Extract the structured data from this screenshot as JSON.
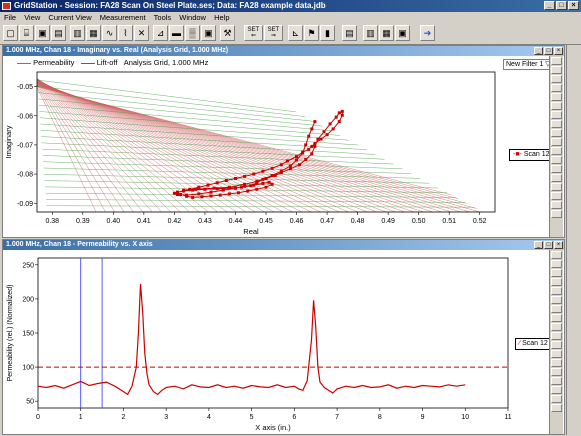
{
  "window": {
    "title": "GridStation - Session: FA28 Scan On Steel Plate.ses; Data: FA28 example data.jdb"
  },
  "menu": [
    "File",
    "View",
    "Current View",
    "Measurement",
    "Tools",
    "Window",
    "Help"
  ],
  "toolbar": {
    "set_label": "SET"
  },
  "colors": {
    "trace": "#cc0000",
    "grid_red": "#d06060",
    "grid_green": "#4a9a4a",
    "cursor_blue": "#3030ff",
    "titlebar": "#0a246a"
  },
  "pane_top": {
    "title": "1.000 MHz, Chan 18 - Imaginary vs. Real (Analysis Grid, 1.000 MHz)",
    "legend": {
      "permeability": "Permeability",
      "liftoff": "Lift-off",
      "grid": "Analysis Grid, 1.000 MHz"
    },
    "filter_value": "New Filter 1",
    "scan_legend": "Scan 12"
  },
  "pane_bottom": {
    "title": "1.000 MHz, Chan 18 - Permeability vs. X axis",
    "scan_legend": "Scan 12"
  },
  "chart_data": [
    {
      "type": "scatter",
      "xlabel": "Real",
      "ylabel": "Imaginary",
      "xlim": [
        0.375,
        0.525
      ],
      "ylim": [
        -0.093,
        -0.045
      ],
      "xticks": [
        "0.38",
        "0.39",
        "0.40",
        "0.41",
        "0.42",
        "0.43",
        "0.44",
        "0.45",
        "0.46",
        "0.47",
        "0.48",
        "0.49",
        "0.50",
        "0.51",
        "0.52"
      ],
      "xtick_values": [
        0.38,
        0.39,
        0.4,
        0.41,
        0.42,
        0.43,
        0.44,
        0.45,
        0.46,
        0.47,
        0.48,
        0.49,
        0.5,
        0.51,
        0.52
      ],
      "yticks": [
        "-0.05",
        "-0.06",
        "-0.07",
        "-0.08",
        "-0.09"
      ],
      "ytick_values": [
        -0.05,
        -0.06,
        -0.07,
        -0.08,
        -0.09
      ],
      "series": [
        {
          "name": "Scan 12",
          "x": [
            0.423,
            0.427,
            0.433,
            0.438,
            0.443,
            0.447,
            0.45,
            0.453,
            0.455,
            0.458,
            0.461,
            0.463,
            0.465,
            0.466,
            0.467,
            0.469,
            0.471,
            0.473,
            0.474,
            0.475,
            0.475,
            0.474,
            0.472,
            0.47,
            0.468,
            0.466,
            0.465,
            0.464,
            0.462,
            0.46,
            0.457,
            0.455,
            0.452,
            0.449,
            0.446,
            0.443,
            0.44,
            0.437,
            0.434,
            0.431,
            0.428,
            0.425,
            0.423,
            0.421,
            0.42,
            0.421,
            0.424,
            0.428,
            0.432,
            0.436,
            0.44,
            0.443,
            0.446,
            0.449,
            0.451,
            0.452,
            0.45,
            0.447,
            0.444,
            0.441,
            0.438,
            0.435,
            0.432,
            0.429,
            0.426,
            0.424,
            0.422,
            0.421,
            0.423,
            0.426,
            0.43,
            0.434,
            0.438,
            0.442,
            0.445,
            0.447,
            0.449,
            0.452,
            0.455,
            0.458,
            0.46,
            0.462,
            0.463,
            0.464,
            0.465,
            0.466
          ],
          "y": [
            -0.0855,
            -0.0852,
            -0.0848,
            -0.0845,
            -0.0835,
            -0.0825,
            -0.0815,
            -0.0805,
            -0.0795,
            -0.0782,
            -0.0768,
            -0.075,
            -0.073,
            -0.0705,
            -0.068,
            -0.0655,
            -0.0628,
            -0.0605,
            -0.059,
            -0.0585,
            -0.0598,
            -0.062,
            -0.0645,
            -0.0665,
            -0.068,
            -0.0695,
            -0.0705,
            -0.0715,
            -0.0725,
            -0.074,
            -0.0755,
            -0.0768,
            -0.078,
            -0.079,
            -0.08,
            -0.0808,
            -0.0815,
            -0.0822,
            -0.083,
            -0.0838,
            -0.0845,
            -0.0852,
            -0.0858,
            -0.0862,
            -0.0866,
            -0.087,
            -0.0872,
            -0.0868,
            -0.0862,
            -0.0855,
            -0.0848,
            -0.0842,
            -0.0838,
            -0.0832,
            -0.0828,
            -0.0835,
            -0.0845,
            -0.0852,
            -0.0858,
            -0.0864,
            -0.0868,
            -0.0872,
            -0.0875,
            -0.0878,
            -0.088,
            -0.0876,
            -0.087,
            -0.0862,
            -0.0858,
            -0.0855,
            -0.0852,
            -0.085,
            -0.0848,
            -0.0845,
            -0.084,
            -0.083,
            -0.0818,
            -0.0805,
            -0.079,
            -0.0772,
            -0.0752,
            -0.0728,
            -0.07,
            -0.067,
            -0.0645,
            -0.062
          ]
        }
      ]
    },
    {
      "type": "line",
      "xlabel": "X axis (in.)",
      "ylabel": "Permeability (rel.) (Normalized)",
      "xlim": [
        0,
        11
      ],
      "ylim": [
        40,
        260
      ],
      "xticks": [
        "0",
        "1",
        "2",
        "3",
        "4",
        "5",
        "6",
        "7",
        "8",
        "9",
        "10",
        "11"
      ],
      "xtick_values": [
        0,
        1,
        2,
        3,
        4,
        5,
        6,
        7,
        8,
        9,
        10,
        11
      ],
      "yticks": [
        "50",
        "100",
        "150",
        "200",
        "250"
      ],
      "ytick_values": [
        50,
        100,
        150,
        200,
        250
      ],
      "threshold": 100,
      "cursors": [
        1.0,
        1.5
      ],
      "series": [
        {
          "name": "Scan 12",
          "x": [
            0.0,
            0.2,
            0.4,
            0.6,
            0.8,
            1.0,
            1.2,
            1.4,
            1.6,
            1.8,
            2.0,
            2.1,
            2.2,
            2.3,
            2.35,
            2.4,
            2.45,
            2.5,
            2.55,
            2.6,
            2.7,
            2.8,
            2.9,
            3.0,
            3.2,
            3.4,
            3.6,
            3.8,
            4.0,
            4.2,
            4.4,
            4.6,
            4.8,
            5.0,
            5.2,
            5.4,
            5.6,
            5.8,
            6.0,
            6.1,
            6.2,
            6.3,
            6.4,
            6.45,
            6.5,
            6.55,
            6.6,
            6.7,
            6.8,
            6.9,
            7.0,
            7.2,
            7.4,
            7.6,
            7.8,
            8.0,
            8.2,
            8.4,
            8.6,
            8.8,
            9.0,
            9.2,
            9.4,
            9.6,
            9.8,
            10.0
          ],
          "y": [
            72,
            70,
            73,
            69,
            74,
            79,
            73,
            76,
            78,
            72,
            64,
            60,
            72,
            100,
            150,
            222,
            180,
            120,
            90,
            74,
            64,
            60,
            66,
            70,
            72,
            68,
            74,
            71,
            70,
            74,
            70,
            72,
            69,
            73,
            71,
            70,
            74,
            70,
            72,
            68,
            66,
            80,
            140,
            198,
            160,
            100,
            78,
            70,
            66,
            62,
            68,
            72,
            70,
            73,
            70,
            71,
            74,
            69,
            72,
            70,
            73,
            72,
            71,
            74,
            72,
            74
          ]
        }
      ]
    }
  ]
}
